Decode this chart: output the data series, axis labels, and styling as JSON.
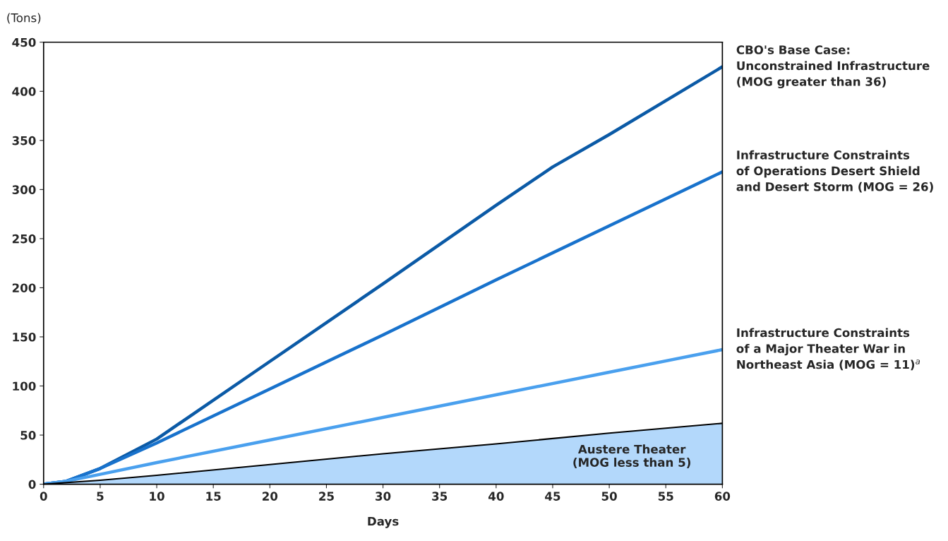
{
  "chart_data": {
    "type": "line",
    "xlabel": "Days",
    "ylabel": "(Tons)",
    "xlim": [
      0,
      60
    ],
    "ylim": [
      0,
      450
    ],
    "xticks": [
      0,
      5,
      10,
      15,
      20,
      25,
      30,
      35,
      40,
      45,
      50,
      55,
      60
    ],
    "yticks": [
      0,
      50,
      100,
      150,
      200,
      250,
      300,
      350,
      400,
      450
    ],
    "grid": false,
    "legend": false,
    "series": [
      {
        "name": "CBO's Base Case:\nUnconstrained Infrastructure\n(MOG greater than 36)",
        "color": "#0b5aa6",
        "x": [
          0,
          2,
          5,
          10,
          20,
          30,
          40,
          45,
          50,
          60
        ],
        "values": [
          0,
          3,
          16,
          46,
          125,
          204,
          284,
          323,
          356,
          425
        ]
      },
      {
        "name": "Infrastructure Constraints\nof Operations Desert Shield\nand Desert Storm (MOG = 26)",
        "color": "#1872cc",
        "x": [
          0,
          2,
          5,
          10,
          20,
          30,
          40,
          50,
          60
        ],
        "values": [
          0,
          3,
          16,
          42,
          97,
          152,
          208,
          263,
          318
        ]
      },
      {
        "name": "Infrastructure Constraints\nof a Major Theater War in\nNortheast Asia (MOG = 11)$^{a}$",
        "color": "#4aa0ee",
        "x": [
          0,
          2,
          5,
          10,
          20,
          30,
          40,
          50,
          60
        ],
        "values": [
          0,
          3,
          10,
          22,
          45,
          68,
          91,
          114,
          137
        ]
      },
      {
        "name": "Austere Theater\n(MOG less than 5)",
        "type": "area",
        "color": "#b3d8fb",
        "x": [
          0,
          5,
          10,
          20,
          30,
          40,
          50,
          60
        ],
        "values": [
          0,
          4,
          9,
          20,
          31,
          41,
          52,
          62
        ]
      }
    ]
  }
}
